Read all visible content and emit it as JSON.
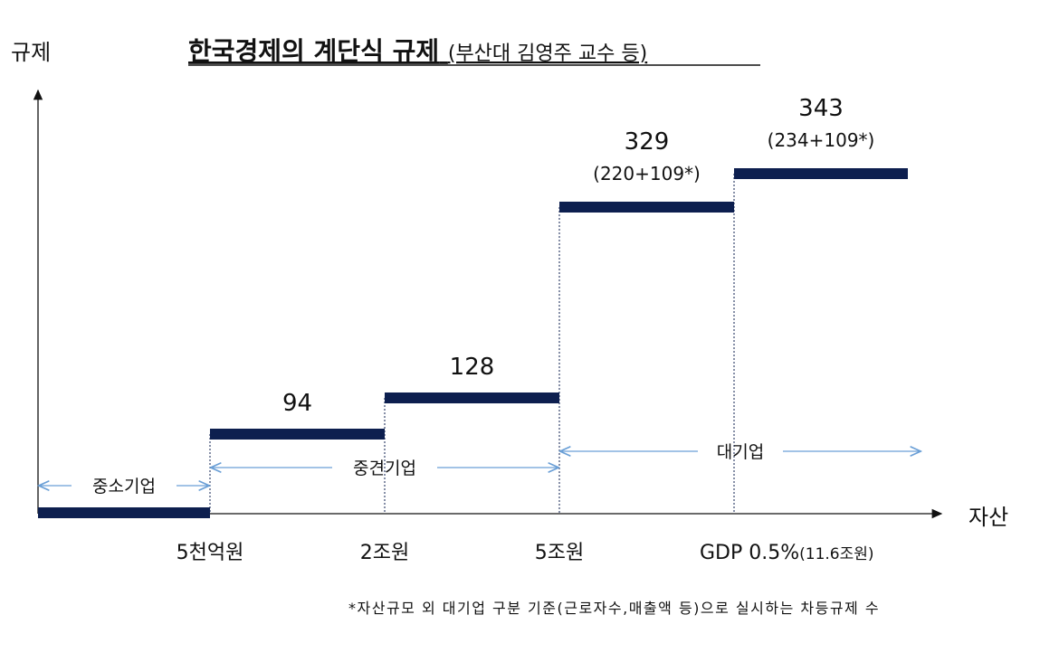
{
  "chart_data": {
    "type": "step",
    "title": "한국경제의 계단식 규제",
    "subtitle": "(부산대 김영주 교수 등)",
    "ylabel": "규제",
    "xlabel": "자산",
    "tick_labels": [
      "5천억원",
      "2조원",
      "5조원",
      "GDP 0.5%",
      "(11.6조원)"
    ],
    "steps": [
      {
        "value": 0,
        "label": "",
        "sublabel": ""
      },
      {
        "value": 94,
        "label": "94",
        "sublabel": ""
      },
      {
        "value": 128,
        "label": "128",
        "sublabel": ""
      },
      {
        "value": 329,
        "label": "329",
        "sublabel": "(220+109*)"
      },
      {
        "value": 343,
        "label": "343",
        "sublabel": "(234+109*)"
      }
    ],
    "ranges": [
      {
        "label": "중소기업",
        "from_step": 0,
        "to_step": 0
      },
      {
        "label": "중견기업",
        "from_step": 1,
        "to_step": 2
      },
      {
        "label": "대기업",
        "from_step": 3,
        "to_step": 4
      }
    ],
    "footnote": "*자산규모 외 대기업 구분 기준(근로자수,매출액 등)으로 실시하는 차등규제 수",
    "colors": {
      "step": "#0d1f4f",
      "range_arrow": "#6a9fd6",
      "axis": "#111111"
    }
  }
}
